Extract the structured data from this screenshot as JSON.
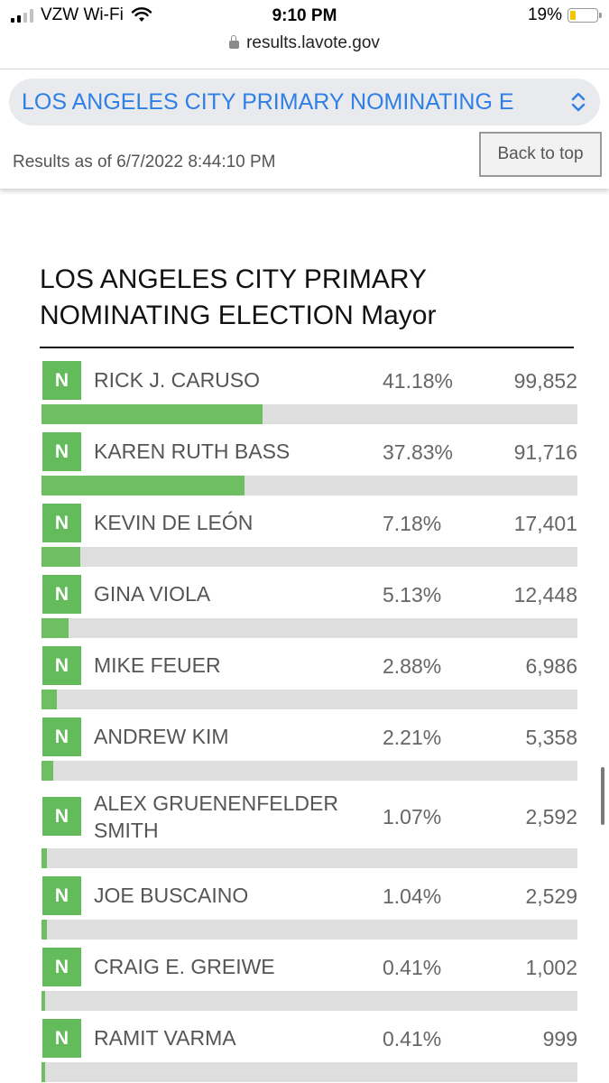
{
  "status_bar": {
    "carrier": "VZW Wi-Fi",
    "time": "9:10 PM",
    "battery": "19%",
    "battery_level": 0.19
  },
  "url": "results.lavote.gov",
  "header": {
    "election_select": "LOS ANGELES CITY PRIMARY NOMINATING E",
    "results_as_of": "Results as of 6/7/2022 8:44:10 PM",
    "back_to_top": "Back to top"
  },
  "contest": {
    "title": "LOS ANGELES CITY PRIMARY NOMINATING ELECTION Mayor",
    "candidates": [
      {
        "badge": "N",
        "name": "RICK J. CARUSO",
        "pct": "41.18%",
        "votes": "99,852",
        "share": 0.4118
      },
      {
        "badge": "N",
        "name": "KAREN RUTH BASS",
        "pct": "37.83%",
        "votes": "91,716",
        "share": 0.3783
      },
      {
        "badge": "N",
        "name": "KEVIN DE LEÓN",
        "pct": "7.18%",
        "votes": "17,401",
        "share": 0.0718
      },
      {
        "badge": "N",
        "name": "GINA VIOLA",
        "pct": "5.13%",
        "votes": "12,448",
        "share": 0.0513
      },
      {
        "badge": "N",
        "name": "MIKE FEUER",
        "pct": "2.88%",
        "votes": "6,986",
        "share": 0.0288
      },
      {
        "badge": "N",
        "name": "ANDREW KIM",
        "pct": "2.21%",
        "votes": "5,358",
        "share": 0.0221
      },
      {
        "badge": "N",
        "name": "ALEX GRUENENFELDER SMITH",
        "pct": "1.07%",
        "votes": "2,592",
        "share": 0.0107
      },
      {
        "badge": "N",
        "name": "JOE BUSCAINO",
        "pct": "1.04%",
        "votes": "2,529",
        "share": 0.0104
      },
      {
        "badge": "N",
        "name": "CRAIG E. GREIWE",
        "pct": "0.41%",
        "votes": "1,002",
        "share": 0.0041
      },
      {
        "badge": "N",
        "name": "RAMIT VARMA",
        "pct": "0.41%",
        "votes": "999",
        "share": 0.0041
      }
    ]
  },
  "colors": {
    "accent": "#2f7fe4",
    "badge": "#64bb5b",
    "bar_fill": "#6dbf61",
    "bar_track": "#dedede"
  }
}
